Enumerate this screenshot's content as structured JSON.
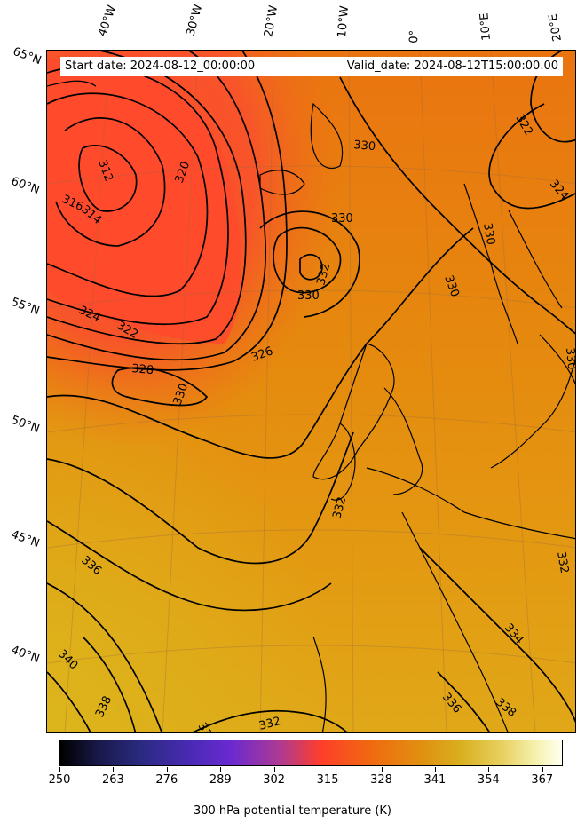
{
  "header": {
    "start_date": "Start date: 2024-08-12_00:00:00",
    "valid_date": "Valid_date: 2024-08-12T15:00:00.00"
  },
  "longitude_labels": [
    "40°W",
    "30°W",
    "20°W",
    "10°W",
    "0°",
    "10°E",
    "20°E"
  ],
  "latitude_labels": [
    "65°N",
    "60°N",
    "55°N",
    "50°N",
    "45°N",
    "40°N"
  ],
  "contour_labels": [
    {
      "text": "312"
    },
    {
      "text": "314"
    },
    {
      "text": "316"
    },
    {
      "text": "320"
    },
    {
      "text": "322"
    },
    {
      "text": "324"
    },
    {
      "text": "326"
    },
    {
      "text": "328"
    },
    {
      "text": "330"
    },
    {
      "text": "330"
    },
    {
      "text": "330"
    },
    {
      "text": "330"
    },
    {
      "text": "332"
    },
    {
      "text": "332"
    },
    {
      "text": "332"
    },
    {
      "text": "332"
    },
    {
      "text": "334"
    },
    {
      "text": "336"
    },
    {
      "text": "336"
    },
    {
      "text": "338"
    },
    {
      "text": "338"
    },
    {
      "text": "340"
    },
    {
      "text": "322"
    },
    {
      "text": "324"
    },
    {
      "text": "330"
    },
    {
      "text": "330"
    },
    {
      "text": "330"
    },
    {
      "text": "332"
    }
  ],
  "colorbar": {
    "ticks": [
      "250",
      "263",
      "276",
      "289",
      "302",
      "315",
      "328",
      "341",
      "354",
      "367"
    ],
    "title": "300 hPa potential temperature (K)",
    "range": [
      250,
      372
    ]
  },
  "colors": {
    "warm_red": "#ff4a2c",
    "orange": "#e8860e",
    "amber": "#e3a418",
    "contour": "#000000"
  }
}
